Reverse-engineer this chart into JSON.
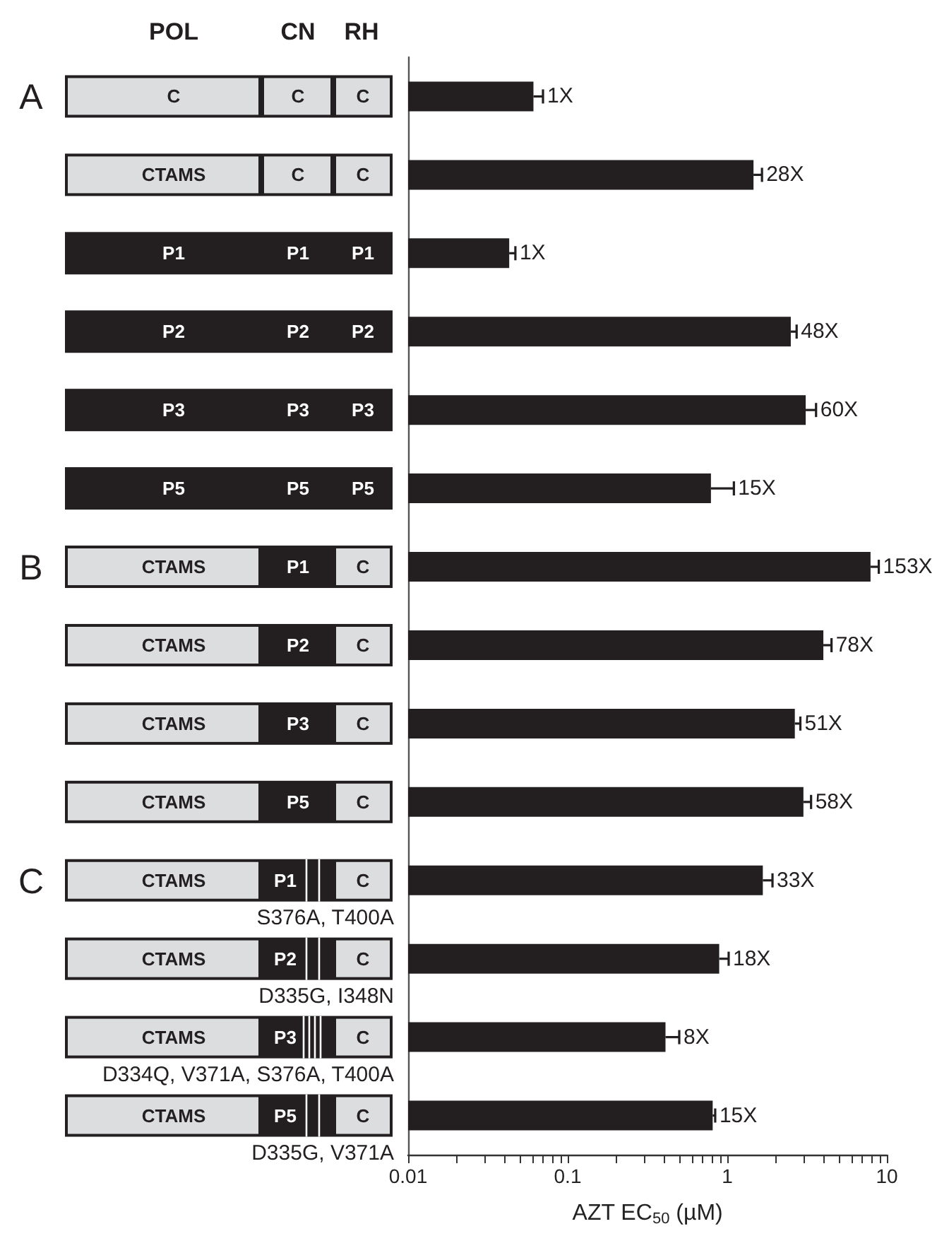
{
  "chart_data": {
    "type": "bar",
    "orientation": "horizontal",
    "log": "x",
    "xlabel": "AZT EC$_{50}$ (µM)",
    "categories": [
      null,
      null,
      null,
      null,
      null,
      null,
      null,
      null,
      null,
      null,
      "S376A, T400A",
      "D335G, I348N",
      "D334Q, V371A, S376A, T400A",
      "D335G, V371A"
    ],
    "values": [
      0.061,
      1.46,
      0.043,
      2.5,
      3.1,
      0.79,
      7.9,
      4.0,
      2.65,
      3.0,
      1.67,
      0.89,
      0.41,
      0.81
    ],
    "errors": [
      [
        0.061,
        0.07
      ],
      [
        1.46,
        1.65
      ],
      [
        0.043,
        0.047
      ],
      [
        2.5,
        2.72
      ],
      [
        3.1,
        3.6
      ],
      [
        0.79,
        1.1
      ],
      [
        7.9,
        8.9
      ],
      [
        4.0,
        4.5
      ],
      [
        2.65,
        2.87
      ],
      [
        3.0,
        3.35
      ],
      [
        1.67,
        1.92
      ],
      [
        0.89,
        1.02
      ],
      [
        0.41,
        0.5
      ],
      [
        0.81,
        0.84
      ]
    ],
    "color": "#231f20",
    "xlim": [
      0.01,
      10
    ],
    "xticks": [
      0.01,
      {
        "value": 0.02,
        "label": null
      },
      {
        "value": 0.03,
        "label": null
      },
      {
        "value": 0.04,
        "label": null
      },
      {
        "value": 0.05,
        "label": null
      },
      {
        "value": 0.06,
        "label": null
      },
      {
        "value": 0.07,
        "label": null
      },
      {
        "value": 0.08,
        "label": null
      },
      {
        "value": 0.09,
        "label": null
      },
      0.1,
      {
        "value": 0.2,
        "label": null
      },
      {
        "value": 0.3,
        "label": null
      },
      {
        "value": 0.4,
        "label": null
      },
      {
        "value": 0.5,
        "label": null
      },
      {
        "value": 0.6,
        "label": null
      },
      {
        "value": 0.7,
        "label": null
      },
      {
        "value": 0.8,
        "label": null
      },
      {
        "value": 0.9,
        "label": null
      },
      1,
      {
        "value": 2,
        "label": null
      },
      {
        "value": 3,
        "label": null
      },
      {
        "value": 4,
        "label": null
      },
      {
        "value": 5,
        "label": null
      },
      {
        "value": 6,
        "label": null
      },
      {
        "value": 7,
        "label": null
      },
      {
        "value": 8,
        "label": null
      },
      {
        "value": 9,
        "label": null
      },
      10
    ],
    "grid": false,
    "annotations": [
      "POL",
      "CN",
      "RH",
      "A",
      "B",
      "C",
      "C",
      "C",
      "C",
      "CTAMS",
      "C",
      "C",
      "P1",
      "P1",
      "P1",
      "P2",
      "P2",
      "P2",
      "P3",
      "P3",
      "P3",
      "P5",
      "P5",
      "P5",
      "CTAMS",
      "P1",
      "C",
      "CTAMS",
      "P2",
      "C",
      "CTAMS",
      "P3",
      "C",
      "CTAMS",
      "P5",
      "C",
      "CTAMS",
      "P1",
      "C",
      "CTAMS",
      "P2",
      "C",
      "CTAMS",
      "P3",
      "C",
      "CTAMS",
      "P5",
      "C",
      "1X",
      "28X",
      "1X",
      "48X",
      "60X",
      "15X",
      "153X",
      "78X",
      "51X",
      "58X",
      "33X",
      "18X",
      "8X",
      "15X"
    ]
  }
}
